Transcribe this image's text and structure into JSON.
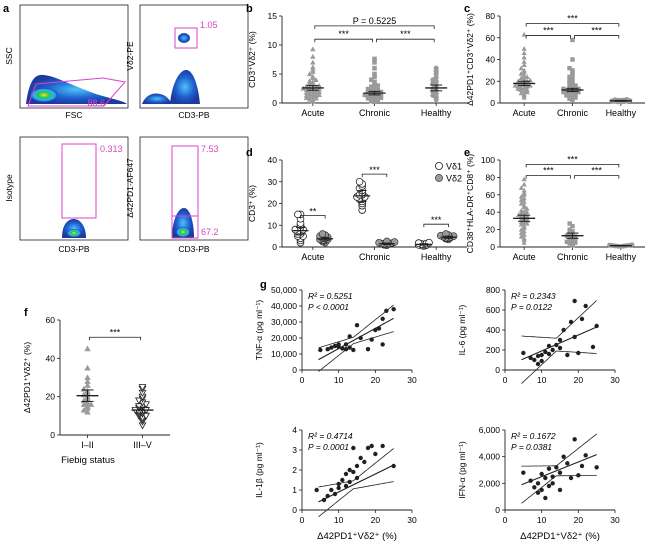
{
  "panels": {
    "a": {
      "label": "a",
      "plots": [
        {
          "ylabel": "SSC",
          "xlabel": "FSC",
          "gate_value": "88.6"
        },
        {
          "ylabel": "Vδ2-PE",
          "xlabel": "CD3-PB",
          "gate_value": "1.05"
        },
        {
          "ylabel": "Isotype",
          "xlabel": "CD3-PB",
          "gate_value": "0.313"
        },
        {
          "ylabel": "Δ42PD1-AF647",
          "xlabel": "CD3-PB",
          "gate_value": "7.53",
          "gate_value_2": "67.2"
        }
      ]
    },
    "f_xlabel": "Fiebig status",
    "g_xlabel": "Δ42PD1⁺Vδ2⁺ (%)"
  },
  "chart_data": [
    {
      "id": "b",
      "label": "b",
      "type": "scatter",
      "ylabel": "CD3⁺Vδ2⁺ (%)",
      "ylim": [
        0,
        15
      ],
      "yticks": [
        "0",
        "5",
        "10",
        "15"
      ],
      "categories": [
        "Acute",
        "Chronic",
        "Healthy"
      ],
      "groups": [
        {
          "name": "Acute",
          "marker": "triangle",
          "mean": 2.6,
          "sem": 0.4,
          "values": [
            0.3,
            0.5,
            0.6,
            0.8,
            0.9,
            1.0,
            1.1,
            1.2,
            1.3,
            1.4,
            1.5,
            1.6,
            1.7,
            1.8,
            1.9,
            2.0,
            2.1,
            2.2,
            2.3,
            2.4,
            2.5,
            2.6,
            2.7,
            2.8,
            2.9,
            3.0,
            3.2,
            3.4,
            3.6,
            3.8,
            4.0,
            4.3,
            4.6,
            5.0,
            5.4,
            5.8,
            6.2,
            7.0,
            8.0,
            9.3
          ]
        },
        {
          "name": "Chronic",
          "marker": "square",
          "mean": 1.7,
          "sem": 0.3,
          "values": [
            0.2,
            0.3,
            0.4,
            0.5,
            0.6,
            0.7,
            0.8,
            0.9,
            1.0,
            1.0,
            1.1,
            1.2,
            1.3,
            1.4,
            1.5,
            1.6,
            1.7,
            1.8,
            1.9,
            2.0,
            2.1,
            2.2,
            2.4,
            2.6,
            2.8,
            3.0,
            3.3,
            3.6,
            4.0,
            4.5,
            5.0,
            6.0,
            7.0,
            7.6
          ]
        },
        {
          "name": "Healthy",
          "marker": "circle",
          "mean": 2.6,
          "sem": 0.5,
          "values": [
            0.6,
            1.0,
            1.3,
            1.6,
            1.9,
            2.2,
            2.5,
            2.8,
            3.1,
            3.4,
            3.7,
            4.0,
            4.4,
            5.0,
            5.5,
            6.0
          ]
        }
      ],
      "annotations": [
        {
          "text": "P = 0.5225",
          "from": 0,
          "to": 2,
          "y": 13.3
        },
        {
          "text": "***",
          "from": 0,
          "to": 1,
          "y": 11.0
        },
        {
          "text": "***",
          "from": 1,
          "to": 2,
          "y": 11.0
        }
      ]
    },
    {
      "id": "c",
      "label": "c",
      "type": "scatter",
      "ylabel": "Δ42PD1⁺CD3⁺Vδ2⁺ (%)",
      "ylim": [
        0,
        80
      ],
      "yticks": [
        "0",
        "20",
        "40",
        "60",
        "80"
      ],
      "categories": [
        "Acute",
        "Chronic",
        "Healthy"
      ],
      "groups": [
        {
          "name": "Acute",
          "marker": "triangle",
          "mean": 18,
          "sem": 2,
          "values": [
            5,
            7,
            8,
            9,
            10,
            11,
            12,
            12,
            13,
            14,
            14,
            15,
            15,
            16,
            16,
            17,
            17,
            18,
            18,
            19,
            19,
            20,
            20,
            21,
            22,
            23,
            24,
            25,
            27,
            28,
            30,
            32,
            35,
            38,
            42,
            46,
            50,
            63
          ]
        },
        {
          "name": "Chronic",
          "marker": "square",
          "mean": 12,
          "sem": 1.5,
          "values": [
            3,
            4,
            5,
            6,
            6,
            7,
            7,
            8,
            8,
            9,
            9,
            10,
            10,
            11,
            11,
            12,
            12,
            13,
            13,
            14,
            15,
            16,
            17,
            18,
            19,
            20,
            22,
            24,
            26,
            28,
            30,
            32,
            40,
            58
          ]
        },
        {
          "name": "Healthy",
          "marker": "circle",
          "mean": 2,
          "sem": 0.4,
          "values": [
            0.8,
            1.0,
            1.3,
            1.5,
            1.8,
            2.0,
            2.2,
            2.4,
            2.6,
            2.8,
            3.0,
            3.2
          ]
        }
      ],
      "annotations": [
        {
          "text": "***",
          "from": 0,
          "to": 2,
          "y": 73
        },
        {
          "text": "***",
          "from": 0,
          "to": 1,
          "y": 62
        },
        {
          "text": "***",
          "from": 1,
          "to": 2,
          "y": 62
        }
      ]
    },
    {
      "id": "d",
      "label": "d",
      "type": "scatter",
      "ylabel": "CD3⁺ (%)",
      "ylim": [
        0,
        40
      ],
      "yticks": [
        "0",
        "10",
        "20",
        "30",
        "40"
      ],
      "categories": [
        "Acute",
        "Chronic",
        "Healthy"
      ],
      "legend_position": "top-right",
      "series": [
        {
          "name": "Vδ1",
          "marker": "open-circle"
        },
        {
          "name": "Vδ2",
          "marker": "grey-circle"
        }
      ],
      "groups": [
        {
          "name": "Acute",
          "series": "Vδ1",
          "mean": 7.5,
          "sem": 1.5,
          "values": [
            2,
            3,
            4,
            5,
            5,
            6,
            6,
            7,
            7,
            8,
            8,
            9,
            10,
            11,
            13,
            15,
            15
          ]
        },
        {
          "name": "Acute",
          "series": "Vδ2",
          "mean": 3.8,
          "sem": 0.6,
          "values": [
            2,
            2.5,
            3,
            3,
            3.5,
            3.5,
            4,
            4,
            4.5,
            5,
            5.5,
            6
          ]
        },
        {
          "name": "Chronic",
          "series": "Vδ1",
          "mean": 23.5,
          "sem": 2.5,
          "values": [
            17,
            19,
            20,
            21,
            22,
            22,
            23,
            23,
            24,
            24,
            25,
            26,
            27,
            28,
            29,
            30
          ]
        },
        {
          "name": "Chronic",
          "series": "Vδ2",
          "mean": 1.5,
          "sem": 0.3,
          "values": [
            0.8,
            1.0,
            1.2,
            1.4,
            1.5,
            1.6,
            1.8,
            2.0,
            2.3,
            2.6
          ]
        },
        {
          "name": "Healthy",
          "series": "Vδ1",
          "mean": 1.2,
          "sem": 0.3,
          "values": [
            0.5,
            0.7,
            0.9,
            1.0,
            1.2,
            1.4,
            1.6,
            1.8,
            2.0
          ]
        },
        {
          "name": "Healthy",
          "series": "Vδ2",
          "mean": 4.5,
          "sem": 0.5,
          "values": [
            3.5,
            3.8,
            4.0,
            4.2,
            4.5,
            4.7,
            5.0,
            5.2,
            5.5,
            6.0
          ]
        }
      ],
      "annotations": [
        {
          "text": "**",
          "cat": 0,
          "y": 14.5
        },
        {
          "text": "***",
          "cat": 1,
          "y": 33.5
        },
        {
          "text": "***",
          "cat": 2,
          "y": 10.5
        }
      ]
    },
    {
      "id": "e",
      "label": "e",
      "type": "scatter",
      "ylabel": "CD38⁺HLA-DR⁺CD8⁺ (%)",
      "ylim": [
        0,
        100
      ],
      "yticks": [
        "0",
        "20",
        "40",
        "60",
        "80",
        "100"
      ],
      "categories": [
        "Acute",
        "Chronic",
        "Healthy"
      ],
      "groups": [
        {
          "name": "Acute",
          "marker": "triangle",
          "mean": 33,
          "sem": 3.5,
          "values": [
            5,
            8,
            10,
            12,
            14,
            16,
            18,
            20,
            22,
            24,
            26,
            27,
            28,
            29,
            30,
            31,
            32,
            33,
            34,
            35,
            36,
            37,
            38,
            39,
            40,
            41,
            42,
            44,
            46,
            48,
            50,
            52,
            54,
            56,
            58,
            60,
            62,
            65,
            68,
            72,
            78
          ]
        },
        {
          "name": "Chronic",
          "marker": "square",
          "mean": 13,
          "sem": 3,
          "values": [
            2,
            3,
            4,
            5,
            6,
            7,
            8,
            9,
            10,
            11,
            12,
            13,
            14,
            16,
            18,
            20,
            24,
            27
          ]
        },
        {
          "name": "Healthy",
          "marker": "circle",
          "mean": 1.5,
          "sem": 0.3,
          "values": [
            0.5,
            0.8,
            1.0,
            1.2,
            1.5,
            1.7,
            2.0,
            2.2,
            2.5
          ]
        }
      ],
      "annotations": [
        {
          "text": "***",
          "from": 0,
          "to": 2,
          "y": 95
        },
        {
          "text": "***",
          "from": 0,
          "to": 1,
          "y": 82
        },
        {
          "text": "***",
          "from": 1,
          "to": 2,
          "y": 82
        }
      ]
    },
    {
      "id": "f",
      "label": "f",
      "type": "scatter",
      "ylabel": "Δ42PD1⁺Vδ2⁺ (%)",
      "ylim": [
        0,
        60
      ],
      "yticks": [
        "0",
        "20",
        "40",
        "60"
      ],
      "categories": [
        "I–II",
        "III–V"
      ],
      "groups": [
        {
          "name": "I–II",
          "marker": "triangle",
          "mean": 20.5,
          "sem": 3,
          "values": [
            12,
            13,
            14,
            15,
            16,
            16,
            17,
            18,
            19,
            20,
            21,
            22,
            23,
            24,
            26,
            28,
            30,
            35,
            45
          ]
        },
        {
          "name": "III–V",
          "marker": "open-triangle-down",
          "mean": 13,
          "sem": 1.5,
          "values": [
            5,
            7,
            8,
            9,
            10,
            10,
            11,
            11,
            12,
            12,
            13,
            13,
            14,
            14,
            15,
            15,
            16,
            17,
            18,
            19,
            20,
            22,
            24,
            25
          ]
        }
      ],
      "annotations": [
        {
          "text": "***",
          "from": 0,
          "to": 1,
          "y": 51
        }
      ]
    },
    {
      "id": "g1",
      "label": "g",
      "type": "scatter",
      "ylabel": "TNF-α (pg ml⁻¹)",
      "xlim": [
        0,
        30
      ],
      "ylim": [
        0,
        50000
      ],
      "xticks": [
        "0",
        "10",
        "20",
        "30"
      ],
      "yticks": [
        "0",
        "10,000",
        "20,000",
        "30,000",
        "40,000",
        "50,000"
      ],
      "stats": [
        "R² = 0.5251",
        "P < 0.0001"
      ],
      "fit": {
        "slope": 1260,
        "intercept": 800,
        "band": 0.16
      },
      "points": [
        [
          5,
          12500
        ],
        [
          7,
          13000
        ],
        [
          8,
          14000
        ],
        [
          9,
          15000
        ],
        [
          10,
          14500
        ],
        [
          10,
          16000
        ],
        [
          11,
          13500
        ],
        [
          12,
          16000
        ],
        [
          12,
          13000
        ],
        [
          13,
          14000
        ],
        [
          14,
          12500
        ],
        [
          13,
          21000
        ],
        [
          15,
          28000
        ],
        [
          16,
          20000
        ],
        [
          18,
          13000
        ],
        [
          19,
          19000
        ],
        [
          20,
          25000
        ],
        [
          21,
          26000
        ],
        [
          22,
          32000
        ],
        [
          23,
          37000
        ],
        [
          25,
          38000
        ],
        [
          22,
          16000
        ]
      ]
    },
    {
      "id": "g2",
      "type": "scatter",
      "ylabel": "IL-6 (pg ml⁻¹)",
      "xlim": [
        0,
        30
      ],
      "ylim": [
        0,
        800
      ],
      "xticks": [
        "0",
        "10",
        "20",
        "30"
      ],
      "yticks": [
        "0",
        "200",
        "400",
        "600",
        "800"
      ],
      "stats": [
        "R² = 0.2343",
        "P = 0.0122"
      ],
      "fit": {
        "slope": 16,
        "intercept": 30,
        "band": 0.32
      },
      "points": [
        [
          5,
          170
        ],
        [
          7,
          120
        ],
        [
          8,
          100
        ],
        [
          9,
          140
        ],
        [
          10,
          150
        ],
        [
          10,
          90
        ],
        [
          11,
          180
        ],
        [
          12,
          160
        ],
        [
          12,
          240
        ],
        [
          13,
          200
        ],
        [
          14,
          250
        ],
        [
          15,
          220
        ],
        [
          15,
          300
        ],
        [
          16,
          400
        ],
        [
          17,
          150
        ],
        [
          18,
          480
        ],
        [
          19,
          330
        ],
        [
          19,
          690
        ],
        [
          20,
          170
        ],
        [
          21,
          510
        ],
        [
          22,
          640
        ],
        [
          24,
          230
        ],
        [
          25,
          440
        ],
        [
          9,
          60
        ]
      ]
    },
    {
      "id": "g3",
      "type": "scatter",
      "ylabel": "IL-1β (pg ml⁻¹)",
      "xlim": [
        0,
        30
      ],
      "ylim": [
        0,
        4
      ],
      "xticks": [
        "0",
        "10",
        "20",
        "30"
      ],
      "yticks": [
        "0",
        "1",
        "2",
        "3",
        "4"
      ],
      "stats": [
        "R² = 0.4714",
        "P = 0.0001"
      ],
      "fit": {
        "slope": 0.09,
        "intercept": 0.0,
        "band": 0.2
      },
      "points": [
        [
          4,
          1.0
        ],
        [
          6,
          0.5
        ],
        [
          7,
          0.7
        ],
        [
          8,
          1.0
        ],
        [
          9,
          0.8
        ],
        [
          10,
          1.3
        ],
        [
          10,
          1.1
        ],
        [
          11,
          1.5
        ],
        [
          12,
          1.8
        ],
        [
          12,
          1.2
        ],
        [
          13,
          2.0
        ],
        [
          13,
          1.4
        ],
        [
          14,
          1.9
        ],
        [
          15,
          1.6
        ],
        [
          15,
          2.2
        ],
        [
          16,
          2.6
        ],
        [
          17,
          2.4
        ],
        [
          18,
          3.1
        ],
        [
          19,
          3.2
        ],
        [
          20,
          2.8
        ],
        [
          22,
          3.2
        ],
        [
          25,
          2.2
        ],
        [
          14,
          3.1
        ]
      ]
    },
    {
      "id": "g4",
      "type": "scatter",
      "ylabel": "IFN-α (pg ml⁻¹)",
      "xlim": [
        0,
        30
      ],
      "ylim": [
        0,
        6000
      ],
      "xticks": [
        "0",
        "10",
        "20",
        "30"
      ],
      "yticks": [
        "0",
        "2,000",
        "4,000",
        "6,000"
      ],
      "stats": [
        "R² = 0.1672",
        "P = 0.0381"
      ],
      "fit": {
        "slope": 110,
        "intercept": 1400,
        "band": 0.25
      },
      "points": [
        [
          5,
          2800
        ],
        [
          7,
          2200
        ],
        [
          8,
          1700
        ],
        [
          9,
          1300
        ],
        [
          9,
          2000
        ],
        [
          10,
          2700
        ],
        [
          10,
          1500
        ],
        [
          11,
          2400
        ],
        [
          12,
          3100
        ],
        [
          12,
          1800
        ],
        [
          13,
          2500
        ],
        [
          13,
          2000
        ],
        [
          14,
          3200
        ],
        [
          15,
          2800
        ],
        [
          15,
          1500
        ],
        [
          16,
          4000
        ],
        [
          17,
          3500
        ],
        [
          18,
          2400
        ],
        [
          19,
          5300
        ],
        [
          20,
          2600
        ],
        [
          21,
          3300
        ],
        [
          22,
          4100
        ],
        [
          25,
          3200
        ],
        [
          11,
          900
        ]
      ]
    }
  ]
}
